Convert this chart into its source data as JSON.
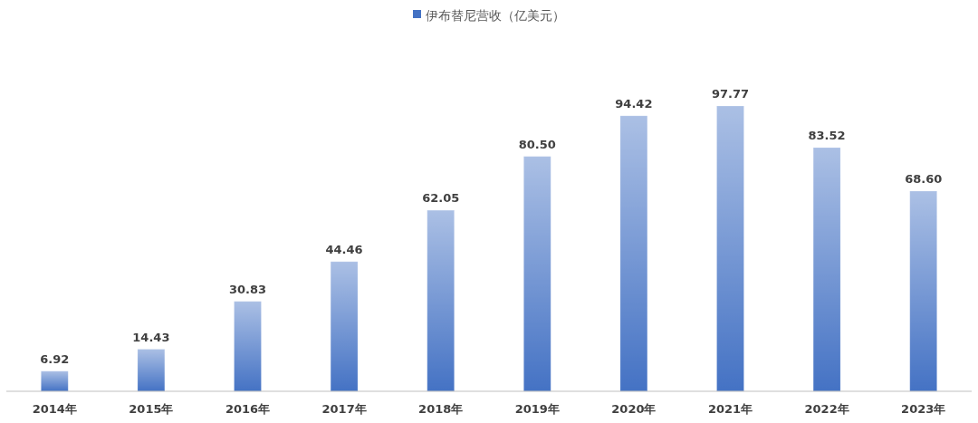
{
  "chart_data": {
    "type": "bar",
    "categories": [
      "2014年",
      "2015年",
      "2016年",
      "2017年",
      "2018年",
      "2019年",
      "2020年",
      "2021年",
      "2022年",
      "2023年"
    ],
    "series": [
      {
        "name": "伊布替尼营收（亿美元）",
        "color": "#4472c4",
        "values": [
          6.92,
          14.43,
          30.83,
          44.46,
          62.05,
          80.5,
          94.42,
          97.77,
          83.52,
          68.6
        ],
        "value_labels": [
          "6.92",
          "14.43",
          "30.83",
          "44.46",
          "62.05",
          "80.50",
          "94.42",
          "97.77",
          "83.52",
          "68.60"
        ]
      }
    ],
    "legend": "top"
  }
}
